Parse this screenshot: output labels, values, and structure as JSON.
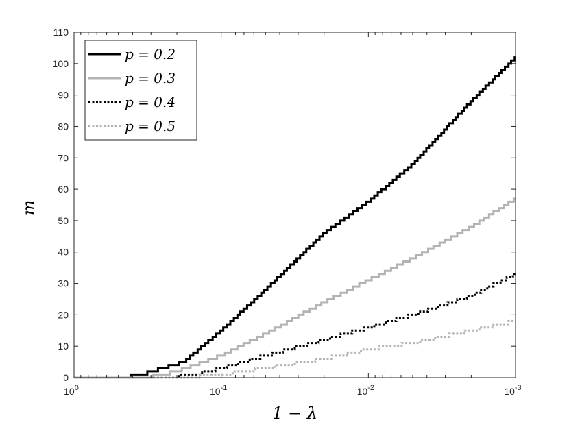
{
  "chart_data": {
    "type": "line",
    "xscale": "log",
    "xreversed": true,
    "xlim": [
      1,
      0.001
    ],
    "ylim": [
      0,
      110
    ],
    "xlabel": "1 − λ",
    "ylabel": "m",
    "grid": false,
    "legend_position": "top-left",
    "xticks": [
      {
        "value": 1,
        "base": "10",
        "exp": "0"
      },
      {
        "value": 0.1,
        "base": "10",
        "exp": "-1"
      },
      {
        "value": 0.01,
        "base": "10",
        "exp": "-2"
      },
      {
        "value": 0.001,
        "base": "10",
        "exp": "-3"
      }
    ],
    "yticks": [
      "0",
      "10",
      "20",
      "30",
      "40",
      "50",
      "60",
      "70",
      "80",
      "90",
      "100",
      "110"
    ],
    "series": [
      {
        "name": "p = 0.2",
        "color": "#000000",
        "dash": "solid",
        "points": [
          [
            1,
            0
          ],
          [
            0.5,
            0
          ],
          [
            0.35,
            1
          ],
          [
            0.25,
            3
          ],
          [
            0.18,
            5
          ],
          [
            0.1,
            15
          ],
          [
            0.05,
            28
          ],
          [
            0.02,
            46
          ],
          [
            0.01,
            56
          ],
          [
            0.005,
            68
          ],
          [
            0.002,
            88
          ],
          [
            0.001,
            102
          ]
        ]
      },
      {
        "name": "p = 0.3",
        "color": "#b3b3b3",
        "dash": "solid",
        "points": [
          [
            1,
            0
          ],
          [
            0.35,
            0
          ],
          [
            0.25,
            1
          ],
          [
            0.2,
            2
          ],
          [
            0.1,
            7
          ],
          [
            0.05,
            14
          ],
          [
            0.02,
            24
          ],
          [
            0.01,
            31
          ],
          [
            0.005,
            38
          ],
          [
            0.002,
            48
          ],
          [
            0.001,
            57
          ]
        ]
      },
      {
        "name": "p = 0.4",
        "color": "#000000",
        "dash": "dotted",
        "points": [
          [
            1,
            0
          ],
          [
            0.25,
            0
          ],
          [
            0.15,
            1
          ],
          [
            0.1,
            3
          ],
          [
            0.05,
            7
          ],
          [
            0.02,
            12
          ],
          [
            0.01,
            16
          ],
          [
            0.005,
            20
          ],
          [
            0.002,
            26
          ],
          [
            0.001,
            33
          ]
        ]
      },
      {
        "name": "p = 0.5",
        "color": "#b3b3b3",
        "dash": "dotted",
        "points": [
          [
            1,
            0
          ],
          [
            0.2,
            0
          ],
          [
            0.1,
            1
          ],
          [
            0.05,
            3
          ],
          [
            0.02,
            6
          ],
          [
            0.01,
            9
          ],
          [
            0.005,
            11
          ],
          [
            0.002,
            15
          ],
          [
            0.001,
            18
          ]
        ]
      }
    ]
  }
}
